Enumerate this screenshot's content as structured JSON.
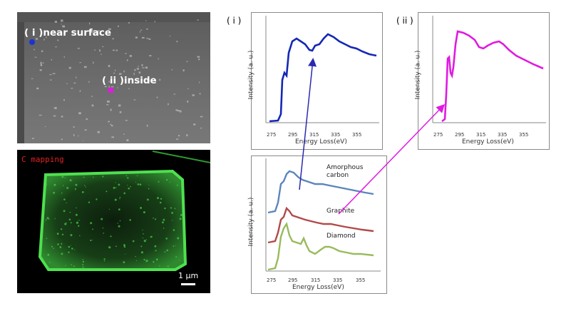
{
  "sem_panel": {
    "label_near_surface": "( i )near surface",
    "label_inside": "( ii )inside",
    "marker_colors": {
      "near_surface": "#1a32d8",
      "inside": "#e01ae0"
    }
  },
  "c_mapping": {
    "title": "C mapping",
    "scale_bar": "1 µm",
    "map_color": "#3cc83c"
  },
  "panel_i": {
    "label": "( i )",
    "xlabel": "Energy  Loss(eV)",
    "ylabel": "Intensity (a. u.)",
    "color": "#1428b4"
  },
  "panel_ii": {
    "label": "( ii )",
    "xlabel": "Energy  Loss(eV)",
    "ylabel": "Intensity (a. u.)",
    "color": "#e01ae0"
  },
  "reference_panel": {
    "xlabel": "Energy  Loss(eV)",
    "ylabel": "Intensity (a. u.)",
    "labels": {
      "amorphous_line1": "Amorphous",
      "amorphous_line2": "carbon",
      "graphite": "Graphite",
      "diamond": "Diamond"
    },
    "colors": {
      "amorphous": "#5b86bc",
      "graphite": "#b24a4a",
      "diamond": "#98bb5c"
    }
  },
  "ticks": [
    "275",
    "295",
    "315",
    "335",
    "355"
  ],
  "arrow_colors": {
    "i": "#2a2ab0",
    "ii": "#e01ae0"
  }
}
